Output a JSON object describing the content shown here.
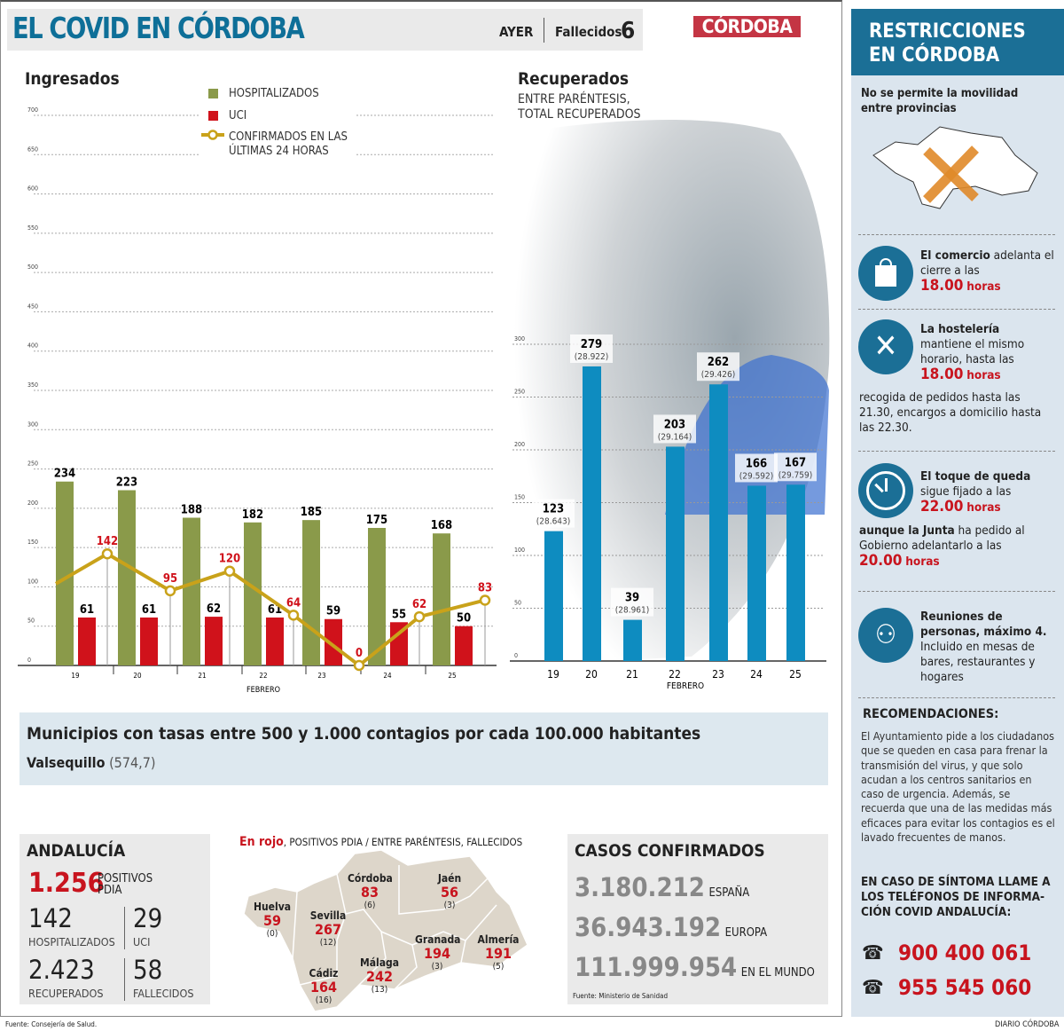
{
  "header": {
    "title": "EL COVID EN CÓRDOBA",
    "ayer": "AYER",
    "fallecidos_label": "Fallecidos",
    "fallecidos_value": "6",
    "logo": "CÓRDOBA"
  },
  "chart_data": [
    {
      "type": "bar+line",
      "title": "Ingresados",
      "categories": [
        "19",
        "20",
        "21",
        "22",
        "23",
        "24",
        "25"
      ],
      "xlabel": "FEBRERO",
      "ylim": [
        0,
        700
      ],
      "yticks": [
        0,
        50,
        100,
        150,
        200,
        250,
        300,
        350,
        400,
        450,
        500,
        550,
        600,
        650,
        700
      ],
      "grid": true,
      "series": [
        {
          "name": "HOSPITALIZADOS",
          "type": "bar",
          "color": "#8a9a4a",
          "values": [
            234,
            223,
            188,
            182,
            185,
            175,
            168
          ]
        },
        {
          "name": "UCI",
          "type": "bar",
          "color": "#d0121b",
          "values": [
            61,
            61,
            62,
            61,
            59,
            55,
            50
          ]
        },
        {
          "name": "CONFIRMADOS EN LAS ÚLTIMAS 24 HORAS",
          "type": "line",
          "color": "#c9a21a",
          "values": [
            142,
            95,
            120,
            64,
            0,
            62,
            83
          ]
        }
      ]
    },
    {
      "type": "bar",
      "title": "Recuperados",
      "subtitle": "ENTRE PARÉNTESIS, TOTAL RECUPERADOS",
      "categories": [
        "19",
        "20",
        "21",
        "22",
        "23",
        "24",
        "25"
      ],
      "xlabel": "FEBRERO",
      "ylim": [
        0,
        300
      ],
      "yticks": [
        0,
        50,
        100,
        150,
        200,
        250,
        300
      ],
      "grid": true,
      "color": "#0e8cc0",
      "values": [
        123,
        279,
        39,
        203,
        262,
        166,
        167
      ],
      "totals": [
        "(28.643)",
        "(28.922)",
        "(28.961)",
        "(29.164)",
        "(29.426)",
        "(29.592)",
        "(29.759)"
      ]
    }
  ],
  "municipios": {
    "title": "Municipios con tasas entre 500 y 1.000 contagios por cada 100.000 habitantes",
    "name": "Valsequillo",
    "value": "(574,7)"
  },
  "andalucia": {
    "title": "ANDALUCÍA",
    "positivos": "1.256",
    "positivos_label1": "POSITIVOS",
    "positivos_label2": "PDIA",
    "hosp": "142",
    "hosp_label": "HOSPITALIZADOS",
    "uci": "29",
    "uci_label": "UCI",
    "recup": "2.423",
    "recup_label": "RECUPERADOS",
    "fall": "58",
    "fall_label": "FALLECIDOS"
  },
  "map": {
    "legend_red": "En rojo",
    "legend_rest": ", POSITIVOS PDIA / ENTRE PARÉNTESIS, FALLECIDOS",
    "provinces": [
      {
        "name": "Huelva",
        "pos": "59",
        "fall": "(0)"
      },
      {
        "name": "Sevilla",
        "pos": "267",
        "fall": "(12)"
      },
      {
        "name": "Córdoba",
        "pos": "83",
        "fall": "(6)"
      },
      {
        "name": "Jaén",
        "pos": "56",
        "fall": "(3)"
      },
      {
        "name": "Granada",
        "pos": "194",
        "fall": "(3)"
      },
      {
        "name": "Almería",
        "pos": "191",
        "fall": "(5)"
      },
      {
        "name": "Málaga",
        "pos": "242",
        "fall": "(13)"
      },
      {
        "name": "Cádiz",
        "pos": "164",
        "fall": "(16)"
      }
    ]
  },
  "casos": {
    "title": "CASOS CONFIRMADOS",
    "rows": [
      {
        "v": "3.180.212",
        "l": "ESPAÑA"
      },
      {
        "v": "36.943.192",
        "l": "EUROPA"
      },
      {
        "v": "111.999.954",
        "l": "EN EL MUNDO"
      }
    ],
    "source": "Fuente: Ministerio de Sanidad"
  },
  "footer": {
    "source": "Fuente: Consejería de Salud.",
    "credit": "DIARIO CÓRDOBA"
  },
  "restricciones": {
    "title1": "RESTRICCIONES",
    "title2": "EN CÓRDOBA",
    "movilidad": "No se permite la movilidad entre provincias",
    "comercio_b": "El comercio",
    "comercio_t": " adelanta el cierre a las",
    "comercio_h": "18.00",
    "horas": "horas",
    "host_b": "La hostelería",
    "host_t": "mantiene el mismo horario, hasta las",
    "host_h": "18.00",
    "host_extra": "recogida de pedidos hasta las 21.30, encargos a domicilio hasta las 22.30.",
    "toque_b": "El toque de queda",
    "toque_t": "sigue fijado a las",
    "toque_h": "22.00",
    "junta_b": "aunque la Junta",
    "junta_t": " ha pedido al Gobierno adelantarlo a las",
    "junta_h": "20.00",
    "reun_b": "Reuniones de personas, máximo 4.",
    "reun_t": "Incluido en mesas de bares, restaurantes y hogares",
    "rec_title": "RECOMENDACIONES:",
    "rec_text": "El Ayuntamiento pide a los ciudadanos que se queden en casa para frenar la transmisión del virus, y que solo acudan a los centros sanitarios en caso de urgencia. Además, se recuerda que una de las medidas más eficaces para evitar los contagios es el lavado frecuentes de manos.",
    "tel_title": "EN CASO DE SÍNTOMA LLAME A LOS TELÉFONOS DE INFORMA-CIÓN COVID ANDALUCÍA:",
    "tel1": "900 400 061",
    "tel2": "955 545 060"
  }
}
